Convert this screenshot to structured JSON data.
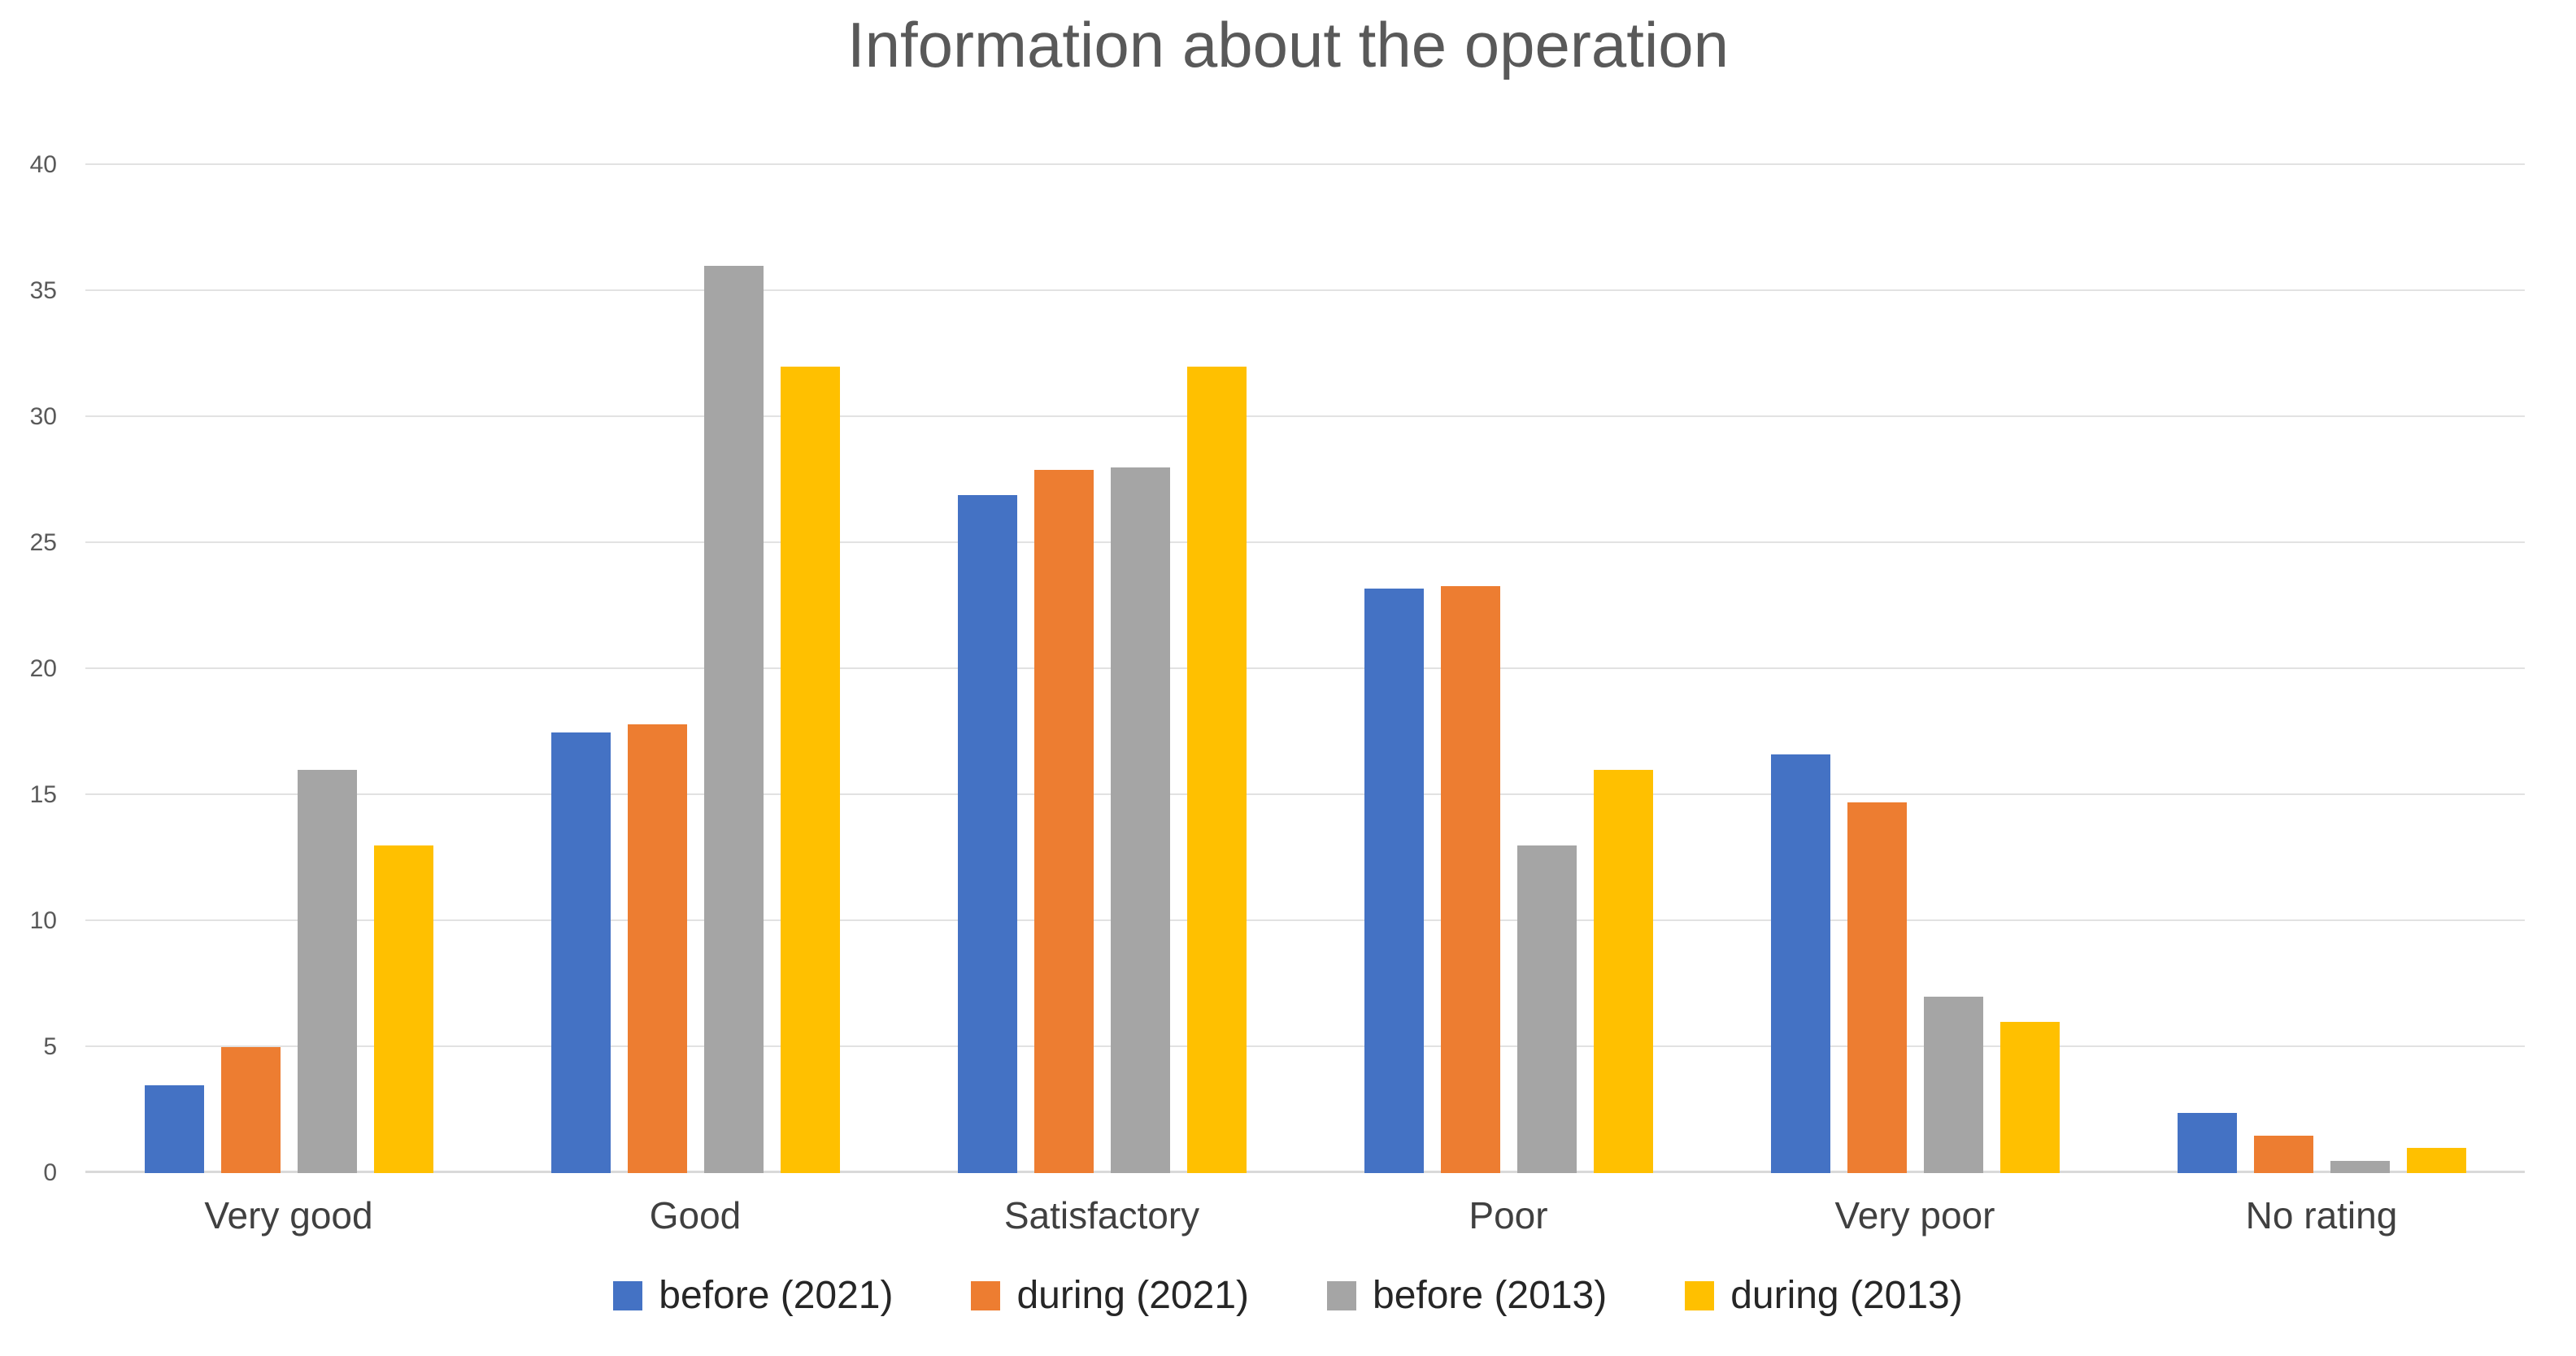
{
  "chart_data": {
    "type": "bar",
    "title": "Information about the operation",
    "categories": [
      "Very good",
      "Good",
      "Satisfactory",
      "Poor",
      "Very poor",
      "No rating"
    ],
    "series": [
      {
        "name": "before (2021)",
        "color": "#4472C4",
        "values": [
          3.5,
          17.5,
          26.9,
          23.2,
          16.6,
          2.4
        ]
      },
      {
        "name": "during (2021)",
        "color": "#ED7D31",
        "values": [
          5,
          17.8,
          27.9,
          23.3,
          14.7,
          1.5
        ]
      },
      {
        "name": "before (2013)",
        "color": "#A5A5A5",
        "values": [
          16,
          36,
          28,
          13,
          7,
          0.5
        ]
      },
      {
        "name": "during (2013)",
        "color": "#FFC000",
        "values": [
          13,
          32,
          32,
          16,
          6,
          1
        ]
      }
    ],
    "xlabel": "",
    "ylabel": "",
    "ylim": [
      0,
      40
    ],
    "yticks": [
      0,
      5,
      10,
      15,
      20,
      25,
      30,
      35,
      40
    ],
    "grid": true,
    "legend_position": "bottom",
    "gridline_color": "#e2e2e2",
    "title_color": "#595959"
  }
}
